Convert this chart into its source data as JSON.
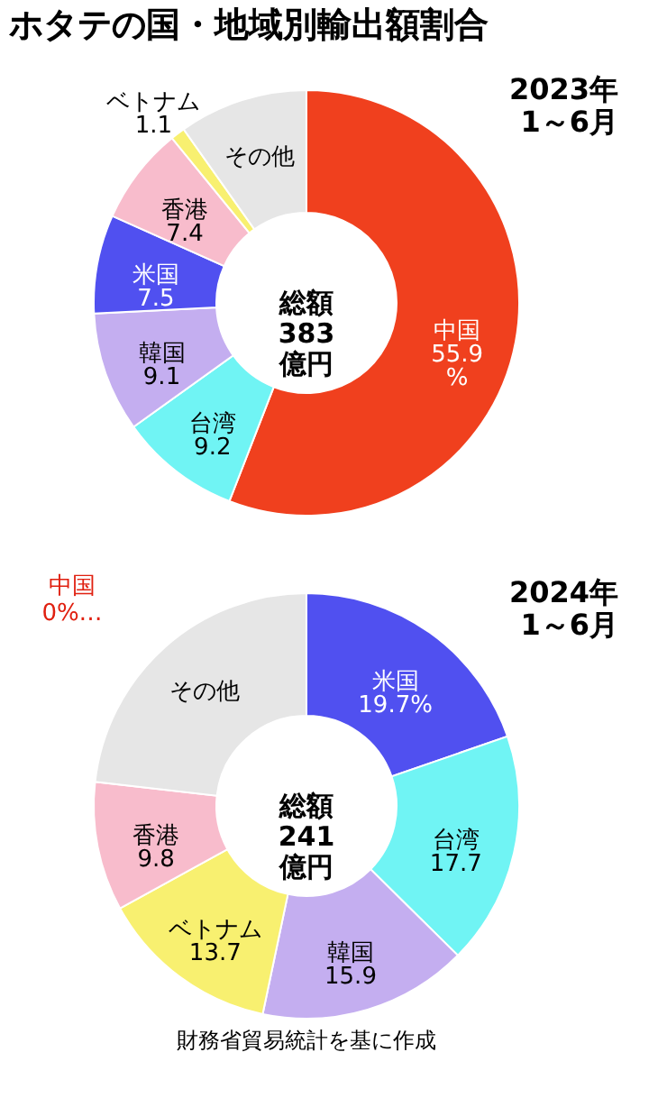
{
  "chart_data": [
    {
      "type": "donut",
      "title": "ホタテの国・地域別輸出額割合",
      "subtitle": "2023年\n1～6月",
      "categories": [
        "中国",
        "台湾",
        "韓国",
        "米国",
        "香港",
        "ベトナム",
        "その他"
      ],
      "values": [
        55.9,
        9.2,
        9.1,
        7.5,
        7.4,
        1.1,
        9.8
      ],
      "colors": [
        "#f0401e",
        "#70f4f4",
        "#c4aef0",
        "#5050f0",
        "#f8bccc",
        "#f8f070",
        "#e6e6e6"
      ],
      "value_labels": [
        "55.9\n%",
        "9.2",
        "9.1",
        "7.5",
        "7.4",
        "1.1",
        null
      ],
      "annotations": [
        "総額\n383\n億円"
      ]
    },
    {
      "type": "donut",
      "subtitle": "2024年\n1～6月",
      "categories": [
        "米国",
        "台湾",
        "韓国",
        "ベトナム",
        "香港",
        "その他"
      ],
      "values": [
        19.7,
        17.7,
        15.9,
        13.7,
        9.8,
        23.2
      ],
      "colors": [
        "#5050f0",
        "#70f4f4",
        "#c4aef0",
        "#f8f070",
        "#f8bccc",
        "#e6e6e6"
      ],
      "value_labels": [
        "19.7%",
        "17.7",
        "15.9",
        "13.7",
        "9.8",
        null
      ],
      "annotations": [
        "総額\n241\n億円",
        "中国\n0%…",
        "財務省貿易統計を基に作成"
      ]
    }
  ]
}
